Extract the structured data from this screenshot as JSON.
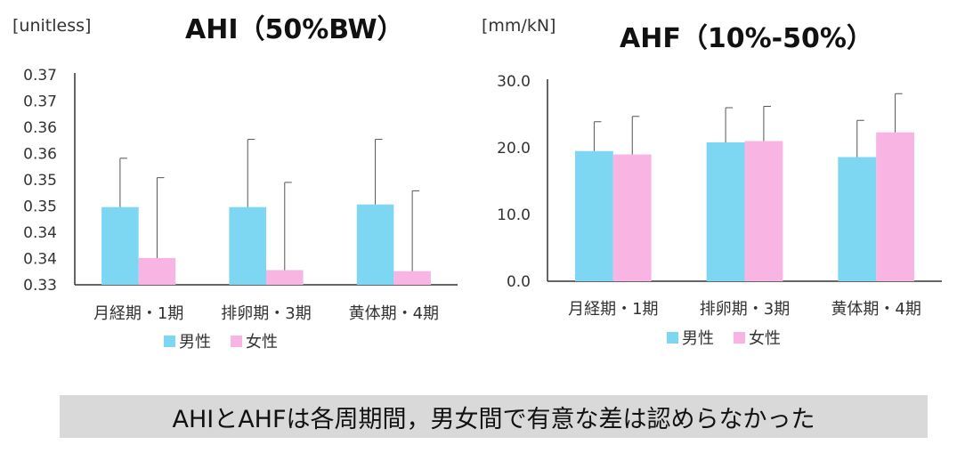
{
  "conclusion": "AHIとAHFは各周期間，男女間で有意な差は認めらなかった",
  "colors": {
    "male": "#7dd7f3",
    "female": "#f8b4e2",
    "axis": "#333333",
    "errbar": "#555555"
  },
  "chart_data": [
    {
      "type": "bar",
      "title": "AHI（50%BW）",
      "unit": "[unitless]",
      "categories": [
        "月経期・1期",
        "排卵期・3期",
        "黄体期・4期"
      ],
      "ylim": [
        0.33,
        0.37
      ],
      "yticks": [
        "0.33",
        "0.34",
        "0.34",
        "0.35",
        "0.35",
        "0.36",
        "0.36",
        "0.37",
        "0.37"
      ],
      "grid": false,
      "legend": "bottom",
      "series": [
        {
          "name": "男性",
          "values": [
            0.3448,
            0.3448,
            0.3453
          ],
          "errors": [
            0.0093,
            0.0129,
            0.0124
          ]
        },
        {
          "name": "女性",
          "values": [
            0.3351,
            0.3328,
            0.3326
          ],
          "errors": [
            0.0153,
            0.0167,
            0.0153
          ]
        }
      ]
    },
    {
      "type": "bar",
      "title": "AHF（10%-50%）",
      "unit": "[mm/kN]",
      "categories": [
        "月経期・1期",
        "排卵期・3期",
        "黄体期・4期"
      ],
      "ylim": [
        0,
        30
      ],
      "yticks": [
        "0.0",
        "10.0",
        "20.0",
        "30.0"
      ],
      "grid": false,
      "legend": "bottom",
      "series": [
        {
          "name": "男性",
          "values": [
            19.5,
            20.8,
            18.6
          ],
          "errors": [
            4.4,
            5.2,
            5.5
          ]
        },
        {
          "name": "女性",
          "values": [
            19.0,
            21.0,
            22.3
          ],
          "errors": [
            5.7,
            5.2,
            5.8
          ]
        }
      ]
    }
  ]
}
